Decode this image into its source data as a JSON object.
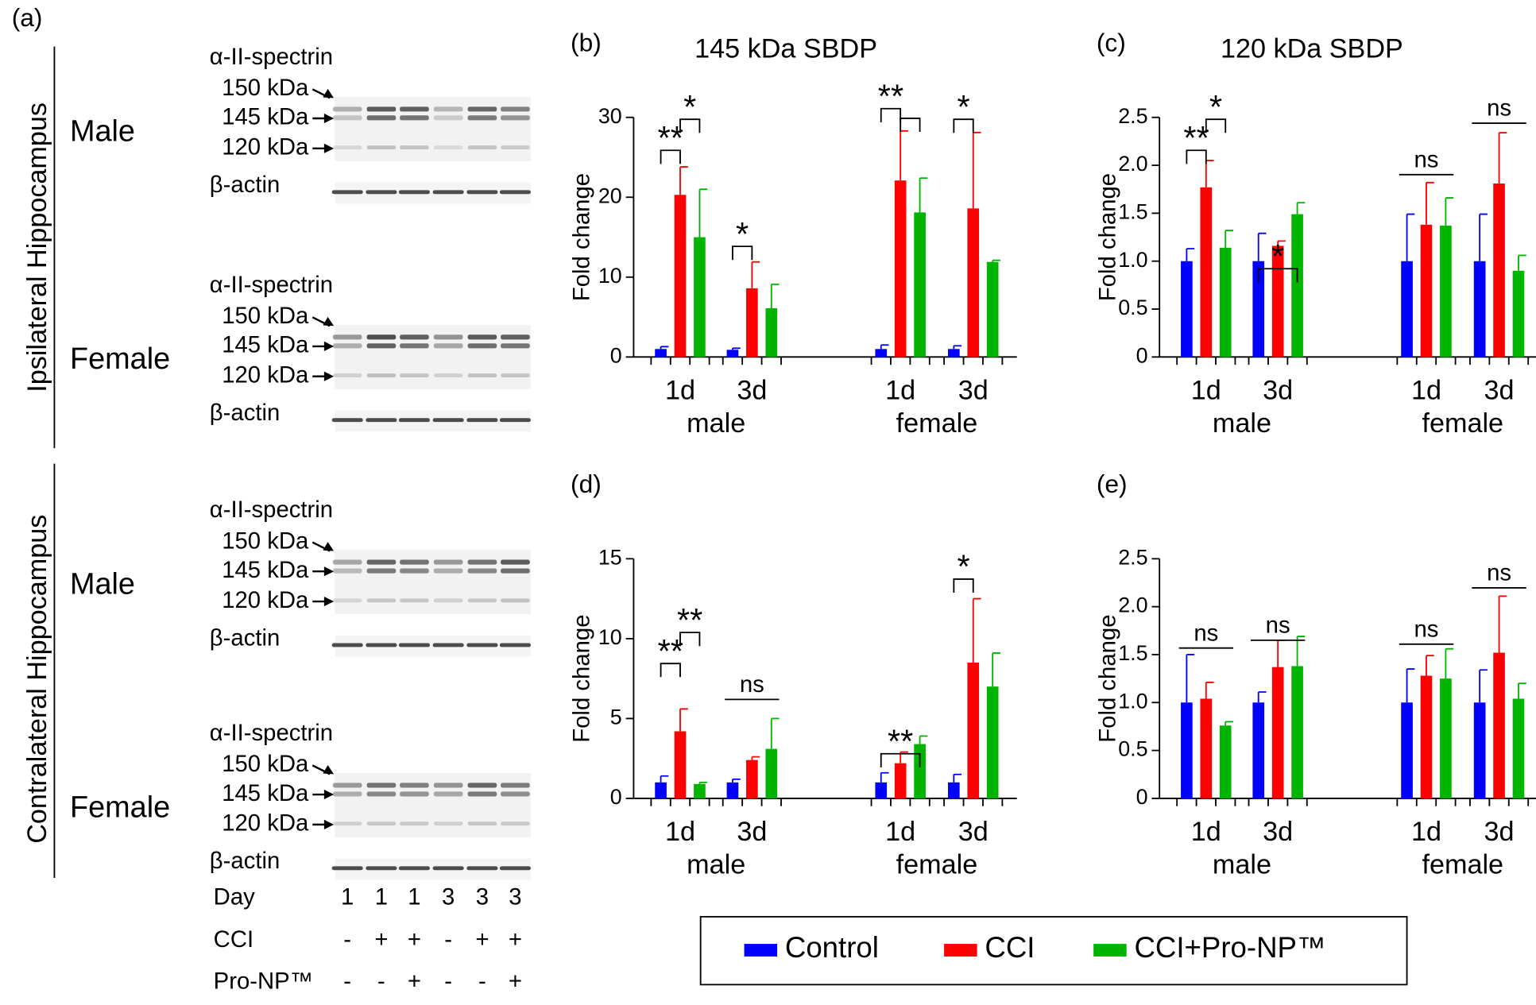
{
  "blot": {
    "panel_label": "(a)",
    "regions": [
      "Ipsilateral Hippocampus",
      "Contralateral Hippocampus"
    ],
    "blocks": [
      {
        "sex": "Male",
        "protein": "α-II-spectrin",
        "markers": [
          "150 kDa",
          "145 kDa",
          "120 kDa"
        ],
        "loading": "β-actin"
      },
      {
        "sex": "Female",
        "protein": "α-II-spectrin",
        "markers": [
          "150 kDa",
          "145 kDa",
          "120 kDa"
        ],
        "loading": "β-actin"
      },
      {
        "sex": "Male",
        "protein": "α-II-spectrin",
        "markers": [
          "150 kDa",
          "145 kDa",
          "120 kDa"
        ],
        "loading": "β-actin"
      },
      {
        "sex": "Female",
        "protein": "α-II-spectrin",
        "markers": [
          "150 kDa",
          "145 kDa",
          "120 kDa"
        ],
        "loading": "β-actin"
      }
    ],
    "rows": [
      {
        "label": "Day",
        "values": [
          "1",
          "1",
          "1",
          "3",
          "3",
          "3"
        ]
      },
      {
        "label": "CCI",
        "values": [
          "-",
          "+",
          "+",
          "-",
          "+",
          "+"
        ]
      },
      {
        "label": "Pro-NP™",
        "values": [
          "-",
          "-",
          "+",
          "-",
          "-",
          "+"
        ]
      }
    ]
  },
  "chart_data": [
    {
      "type": "bar",
      "panel_label": "(b)",
      "title": "145 kDa SBDP",
      "y_label": "Fold change",
      "categories": [
        "1d",
        "3d",
        "1d",
        "3d"
      ],
      "groups": [
        "male",
        "female"
      ],
      "ylim": [
        0,
        30
      ],
      "yticks": [
        0,
        10,
        20,
        30
      ],
      "series": [
        {
          "name": "Control",
          "color": "#0000ff",
          "values": [
            1.0,
            0.9,
            1.0,
            1.0
          ],
          "errors": [
            0.3,
            0.2,
            0.5,
            0.4
          ]
        },
        {
          "name": "CCI",
          "color": "#ff0000",
          "values": [
            20.3,
            8.6,
            22.1,
            18.6
          ],
          "errors": [
            3.5,
            3.3,
            6.2,
            9.5
          ]
        },
        {
          "name": "CCI+Pro-NP™",
          "color": "#00b400",
          "values": [
            15.0,
            6.1,
            18.1,
            11.9
          ],
          "errors": [
            6.0,
            3.0,
            4.3,
            0.2
          ]
        }
      ],
      "annotations": [
        "**",
        "*",
        "*",
        "**",
        "*"
      ]
    },
    {
      "type": "bar",
      "panel_label": "(c)",
      "title": "120 kDa SBDP",
      "y_label": "Fold change",
      "categories": [
        "1d",
        "3d",
        "1d",
        "3d"
      ],
      "groups": [
        "male",
        "female"
      ],
      "ylim": [
        0,
        2.5
      ],
      "yticks": [
        0,
        0.5,
        {
          "value": 1,
          "label": "1.0"
        },
        1.5,
        {
          "value": 2,
          "label": "2.0"
        },
        2.5
      ],
      "series": [
        {
          "name": "Control",
          "color": "#0000ff",
          "values": [
            1.0,
            1.0,
            1.0,
            1.0
          ],
          "errors": [
            0.13,
            0.29,
            0.49,
            0.49
          ]
        },
        {
          "name": "CCI",
          "color": "#ff0000",
          "values": [
            1.77,
            1.16,
            1.38,
            1.81
          ],
          "errors": [
            0.28,
            0.05,
            0.44,
            0.53
          ]
        },
        {
          "name": "CCI+Pro-NP™",
          "color": "#00b400",
          "values": [
            1.14,
            1.49,
            1.37,
            0.9
          ],
          "errors": [
            0.18,
            0.12,
            0.29,
            0.16
          ]
        }
      ],
      "annotations": [
        "**",
        "*",
        "*",
        "ns",
        "ns"
      ]
    },
    {
      "type": "bar",
      "panel_label": "(d)",
      "y_label": "Fold change",
      "categories": [
        "1d",
        "3d",
        "1d",
        "3d"
      ],
      "groups": [
        "male",
        "female"
      ],
      "ylim": [
        0,
        15
      ],
      "yticks": [
        0,
        5,
        10,
        15
      ],
      "series": [
        {
          "name": "Control",
          "color": "#0000ff",
          "values": [
            1.0,
            1.0,
            1.0,
            1.0
          ],
          "errors": [
            0.4,
            0.2,
            0.6,
            0.5
          ]
        },
        {
          "name": "CCI",
          "color": "#ff0000",
          "values": [
            4.2,
            2.4,
            2.2,
            8.5
          ],
          "errors": [
            1.4,
            0.2,
            0.7,
            4.0
          ]
        },
        {
          "name": "CCI+Pro-NP™",
          "color": "#00b400",
          "values": [
            0.9,
            3.1,
            3.4,
            7.0
          ],
          "errors": [
            0.1,
            1.9,
            0.5,
            2.1
          ]
        }
      ],
      "annotations": [
        "**",
        "**",
        "ns",
        "**",
        "*"
      ]
    },
    {
      "type": "bar",
      "panel_label": "(e)",
      "y_label": "Fold change",
      "categories": [
        "1d",
        "3d",
        "1d",
        "3d"
      ],
      "groups": [
        "male",
        "female"
      ],
      "ylim": [
        0,
        2.5
      ],
      "yticks": [
        0,
        0.5,
        {
          "value": 1,
          "label": "1.0"
        },
        1.5,
        {
          "value": 2,
          "label": "2.0"
        },
        2.5
      ],
      "series": [
        {
          "name": "Control",
          "color": "#0000ff",
          "values": [
            1.0,
            1.0,
            1.0,
            1.0
          ],
          "errors": [
            0.5,
            0.11,
            0.35,
            0.34
          ]
        },
        {
          "name": "CCI",
          "color": "#ff0000",
          "values": [
            1.04,
            1.37,
            1.28,
            1.52
          ],
          "errors": [
            0.17,
            0.28,
            0.21,
            0.59
          ]
        },
        {
          "name": "CCI+Pro-NP™",
          "color": "#00b400",
          "values": [
            0.76,
            1.38,
            1.25,
            1.04
          ],
          "errors": [
            0.04,
            0.31,
            0.31,
            0.16
          ]
        }
      ],
      "annotations": [
        "ns",
        "ns",
        "ns",
        "ns"
      ]
    }
  ]
}
